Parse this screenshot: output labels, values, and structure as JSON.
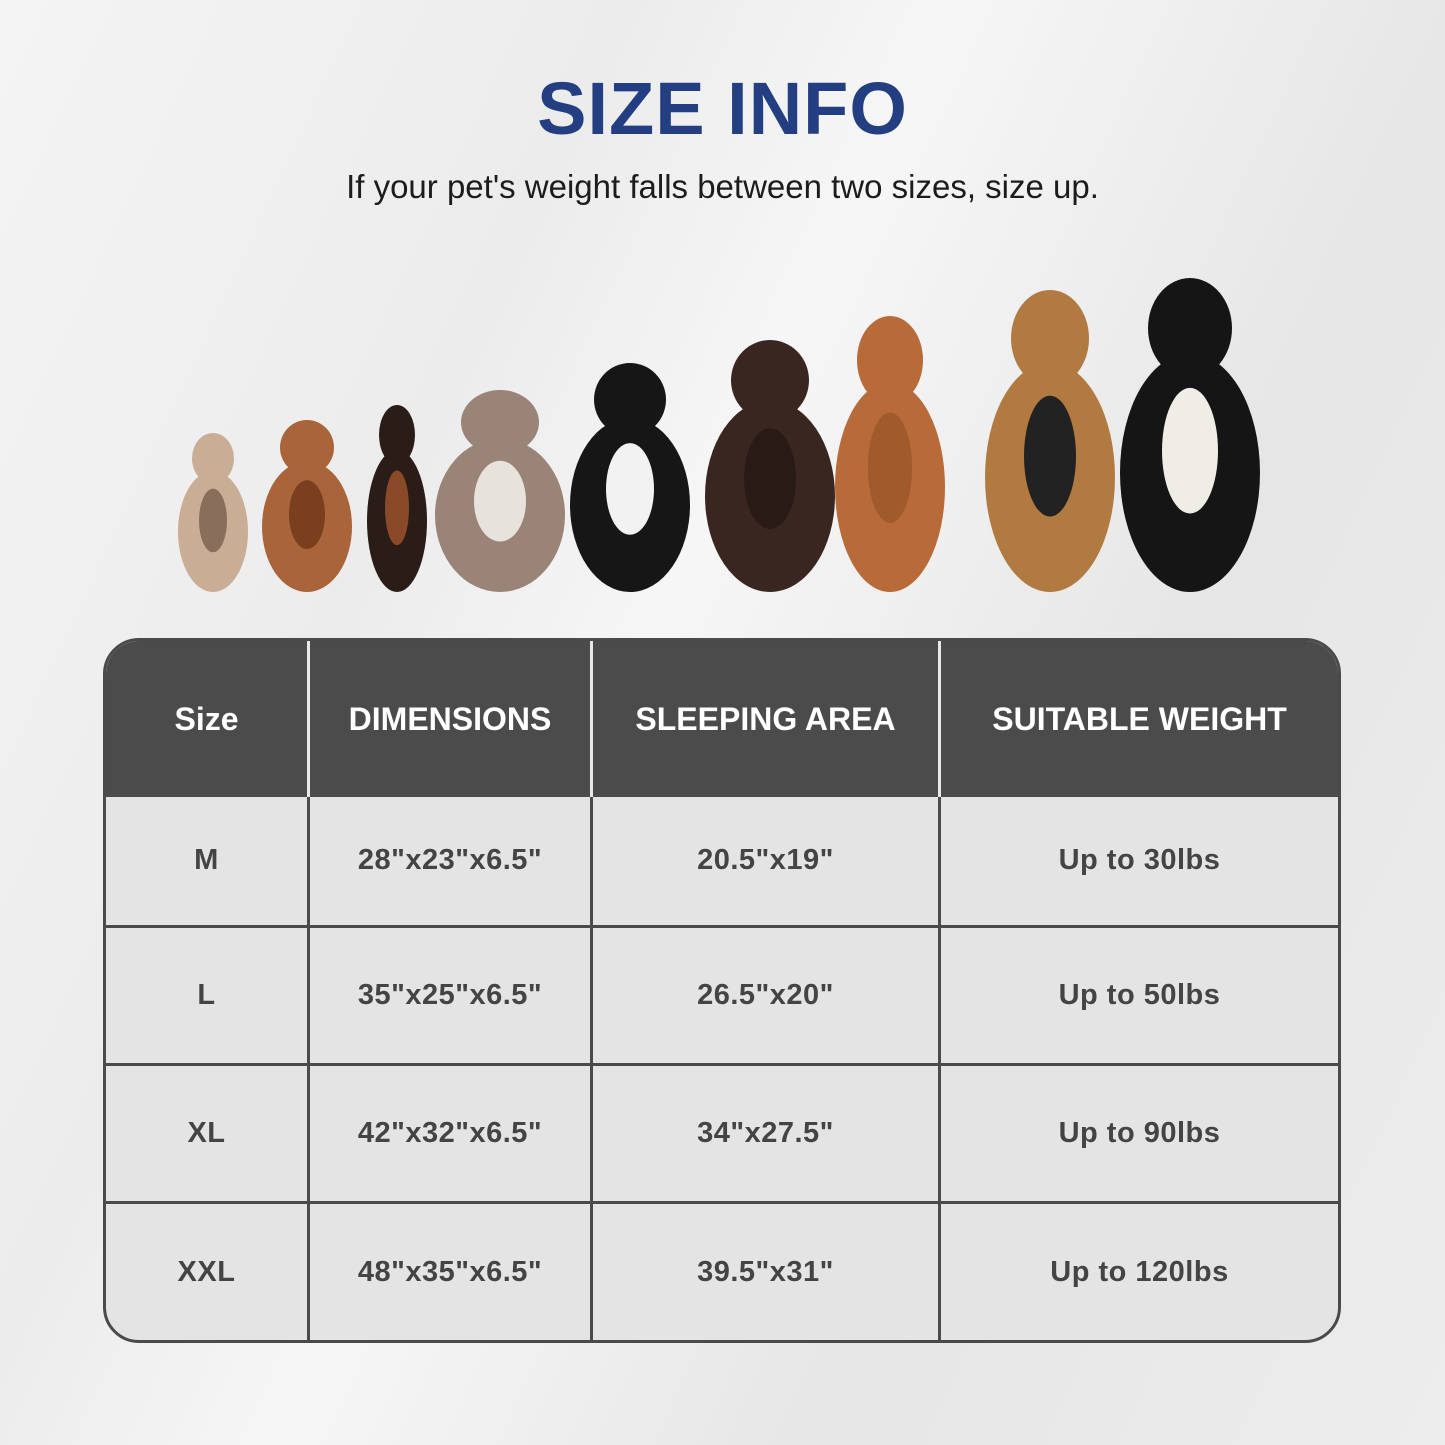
{
  "title": "SIZE INFO",
  "subtitle": "If your pet's weight falls between two sizes, size up.",
  "colors": {
    "title": "#233f82",
    "header_bg": "#4b4b4b",
    "cell_bg": "#e4e4e4"
  },
  "image": "row of nine dogs sitting, small to large",
  "table": {
    "headers": [
      "Size",
      "DIMENSIONS",
      "SLEEPING AREA",
      "SUITABLE WEIGHT"
    ],
    "rows": [
      [
        "M",
        "28\"x23\"x6.5\"",
        "20.5\"x19\"",
        "Up to 30lbs"
      ],
      [
        "L",
        "35\"x25\"x6.5\"",
        "26.5\"x20\"",
        "Up to 50lbs"
      ],
      [
        "XL",
        "42\"x32\"x6.5\"",
        "34\"x27.5\"",
        "Up to 90lbs"
      ],
      [
        "XXL",
        "48\"x35\"x6.5\"",
        "39.5\"x31\"",
        "Up to 120lbs"
      ]
    ]
  }
}
